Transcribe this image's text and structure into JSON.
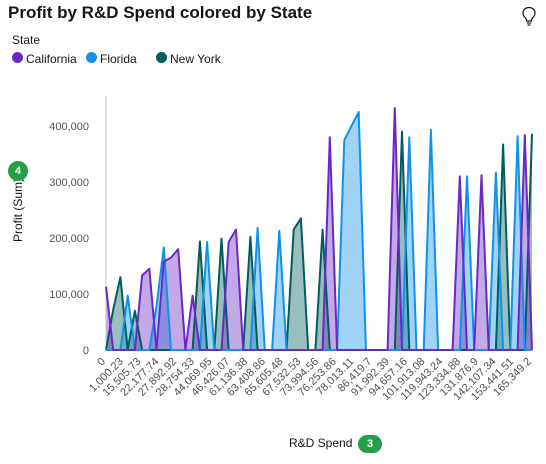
{
  "header": {
    "title": "Profit by R&D Spend colored by State",
    "insight_icon": "lightbulb-icon"
  },
  "legend": {
    "title": "State",
    "items": [
      {
        "label": "California",
        "color": "#6929c4"
      },
      {
        "label": "Florida",
        "color": "#1192e8"
      },
      {
        "label": "New York",
        "color": "#005d5d"
      }
    ]
  },
  "axes": {
    "y_title": "Profit (Sum)",
    "y_badge": "4",
    "x_title": "R&D Spend",
    "x_badge": "3"
  },
  "chart_data": {
    "type": "area",
    "title": "Profit by R&D Spend colored by State",
    "xlabel": "R&D Spend",
    "ylabel": "Profit (Sum)",
    "ylim": [
      0,
      450000
    ],
    "yticks": [
      0,
      100000,
      200000,
      300000,
      400000
    ],
    "ytick_labels": [
      "0",
      "100,000",
      "200,000",
      "300,000",
      "400,000"
    ],
    "grid": false,
    "legend_placement": "top-left",
    "x_tick_labels": [
      "0",
      "1,000.23",
      "15,505.73",
      "22,177.74",
      "27,892.92",
      "28,754.33",
      "44,069.95",
      "46,426.07",
      "61,136.38",
      "63,408.86",
      "65,605.48",
      "67,532.53",
      "73,994.56",
      "76,253.86",
      "78,013.11",
      "86,419.7",
      "91,992.39",
      "94,657.16",
      "101,913.08",
      "119,943.24",
      "123,334.88",
      "131,876.9",
      "142,107.34",
      "153,441.51",
      "165,349.2"
    ],
    "series": [
      {
        "name": "California",
        "color": "#6929c4",
        "values": [
          113000,
          0,
          0,
          0,
          0,
          133000,
          145000,
          0,
          158000,
          165000,
          180000,
          0,
          97000,
          0,
          0,
          0,
          0,
          193000,
          215000,
          0,
          0,
          0,
          0,
          0,
          0,
          0,
          0,
          0,
          0,
          0,
          0,
          380000,
          0,
          0,
          0,
          0,
          0,
          0,
          0,
          0,
          432000,
          0,
          0,
          0,
          0,
          0,
          0,
          0,
          0,
          310000,
          0,
          0,
          312000,
          0,
          0,
          0,
          0,
          0,
          384000,
          0
        ]
      },
      {
        "name": "Florida",
        "color": "#1192e8",
        "values": [
          0,
          0,
          0,
          97000,
          0,
          0,
          0,
          78000,
          183000,
          0,
          0,
          0,
          0,
          0,
          193000,
          0,
          0,
          0,
          0,
          0,
          0,
          218000,
          0,
          0,
          213000,
          0,
          0,
          0,
          0,
          0,
          0,
          0,
          0,
          375000,
          400000,
          425000,
          0,
          0,
          0,
          0,
          0,
          0,
          380000,
          0,
          0,
          393000,
          0,
          0,
          0,
          0,
          310000,
          0,
          0,
          0,
          317000,
          0,
          0,
          382000,
          0,
          0
        ]
      },
      {
        "name": "New York",
        "color": "#005d5d",
        "values": [
          0,
          72000,
          130000,
          0,
          70000,
          0,
          0,
          0,
          0,
          0,
          0,
          0,
          0,
          194000,
          0,
          0,
          199000,
          0,
          0,
          0,
          202000,
          0,
          0,
          0,
          0,
          0,
          215000,
          235000,
          0,
          0,
          215000,
          0,
          0,
          0,
          0,
          0,
          0,
          0,
          0,
          0,
          0,
          390000,
          0,
          0,
          0,
          0,
          0,
          0,
          0,
          0,
          0,
          0,
          0,
          0,
          0,
          367000,
          0,
          0,
          0,
          386000
        ]
      }
    ]
  }
}
